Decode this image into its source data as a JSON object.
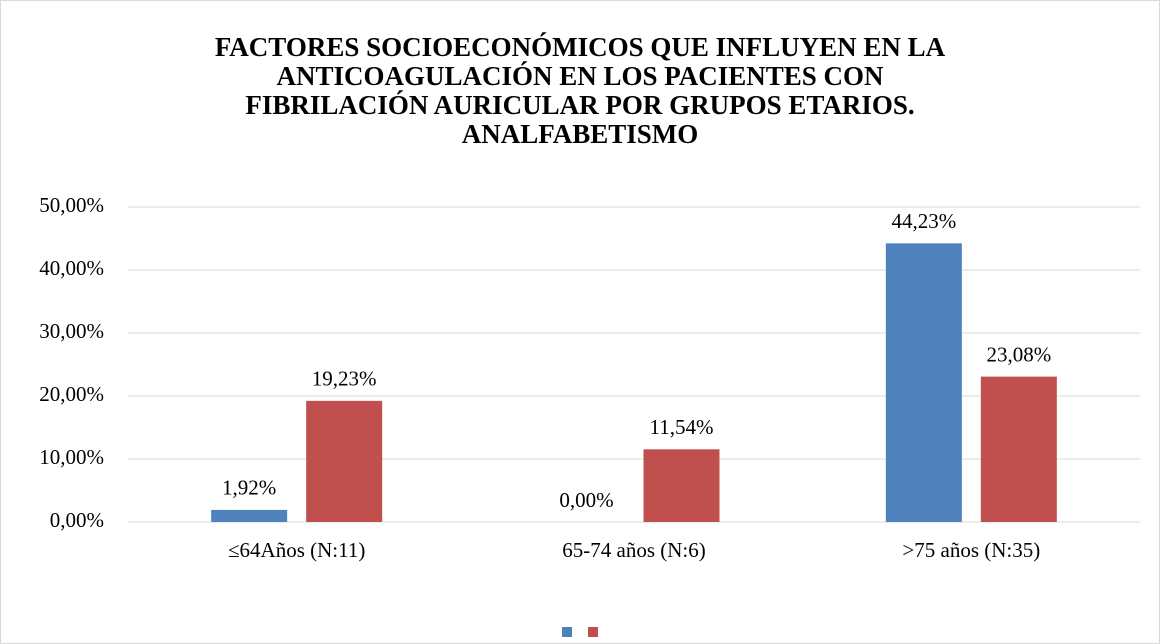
{
  "chart_data": {
    "type": "bar",
    "title": [
      "FACTORES SOCIOECONÓMICOS QUE INFLUYEN EN LA",
      "ANTICOAGULACIÓN EN LOS PACIENTES CON",
      "FIBRILACIÓN AURICULAR POR GRUPOS ETARIOS.",
      "ANALFABETISMO"
    ],
    "categories": [
      "≤64Años (N:11)",
      "65-74 años (N:6)",
      ">75 años (N:35)"
    ],
    "series": [
      {
        "color": "#4f81bd",
        "values": [
          1.92,
          0,
          44.23
        ],
        "value_labels": [
          "1,92%",
          "0,00%",
          "44,23%"
        ]
      },
      {
        "color": "#c0504d",
        "values": [
          19.23,
          11.54,
          23.08
        ],
        "value_labels": [
          "19,23%",
          "11,54%",
          "23,08%"
        ]
      }
    ],
    "ylim": [
      0,
      50
    ],
    "yticks": [
      {
        "value": 0,
        "label": "0,00%"
      },
      {
        "value": 10,
        "label": "10,00%"
      },
      {
        "value": 20,
        "label": "20,00%"
      },
      {
        "value": 30,
        "label": "30,00%"
      },
      {
        "value": 40,
        "label": "40,00%"
      },
      {
        "value": 50,
        "label": "50,00%"
      }
    ],
    "grid": true,
    "legend": "bottom"
  }
}
